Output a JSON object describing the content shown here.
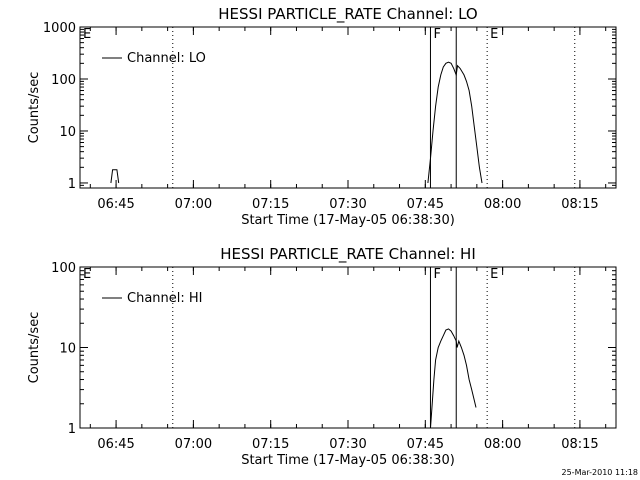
{
  "timestamp": "25-Mar-2010 11:18",
  "chart_data": [
    {
      "type": "line",
      "title": "HESSI PARTICLE_RATE Channel: LO",
      "xlabel": "Start Time (17-May-05 06:38:30)",
      "ylabel": "Counts/sec",
      "y_scale": "log",
      "ylim": [
        0.8,
        1000
      ],
      "y_ticks": [
        {
          "value": 1,
          "label": "1"
        },
        {
          "value": 10,
          "label": "10"
        },
        {
          "value": 100,
          "label": "100"
        },
        {
          "value": 1000,
          "label": "1000"
        }
      ],
      "xlim": [
        "06:38",
        "08:22"
      ],
      "x_ticks": [
        "06:45",
        "07:00",
        "07:15",
        "07:30",
        "07:45",
        "08:00",
        "08:15"
      ],
      "legend": {
        "placement": "top-left",
        "entries": [
          "Channel: LO"
        ]
      },
      "markers": [
        {
          "time": "06:38",
          "label": "E",
          "style": "dotted"
        },
        {
          "time": "06:56",
          "label": "",
          "style": "dotted"
        },
        {
          "time": "07:46",
          "label": "F",
          "style": "solid"
        },
        {
          "time": "07:51",
          "label": "",
          "style": "solid"
        },
        {
          "time": "07:57",
          "label": "E",
          "style": "dotted"
        },
        {
          "time": "08:14",
          "label": "",
          "style": "dotted"
        }
      ],
      "series": [
        {
          "name": "Channel: LO",
          "points": [
            [
              "06:44:00",
              1
            ],
            [
              "06:44:20",
              1.8
            ],
            [
              "06:45:10",
              1.8
            ],
            [
              "06:45:30",
              1
            ]
          ]
        },
        {
          "name": "Channel: LO",
          "points": [
            [
              "07:45:30",
              1
            ],
            [
              "07:46:00",
              3
            ],
            [
              "07:46:30",
              10
            ],
            [
              "07:47:00",
              30
            ],
            [
              "07:47:30",
              70
            ],
            [
              "07:48:00",
              120
            ],
            [
              "07:48:30",
              170
            ],
            [
              "07:49:00",
              200
            ],
            [
              "07:49:30",
              210
            ],
            [
              "07:50:00",
              200
            ],
            [
              "07:50:30",
              160
            ],
            [
              "07:51:00",
              120
            ],
            [
              "07:51:15",
              180
            ],
            [
              "07:51:45",
              160
            ],
            [
              "07:52:30",
              120
            ],
            [
              "07:53:00",
              90
            ],
            [
              "07:53:30",
              60
            ],
            [
              "07:54:00",
              30
            ],
            [
              "07:54:30",
              12
            ],
            [
              "07:55:00",
              5
            ],
            [
              "07:55:30",
              2
            ],
            [
              "07:56:00",
              1
            ]
          ]
        }
      ]
    },
    {
      "type": "line",
      "title": "HESSI PARTICLE_RATE Channel: HI",
      "xlabel": "Start Time (17-May-05 06:38:30)",
      "ylabel": "Counts/sec",
      "y_scale": "log",
      "ylim": [
        1,
        100
      ],
      "y_ticks": [
        {
          "value": 1,
          "label": "1"
        },
        {
          "value": 10,
          "label": "10"
        },
        {
          "value": 100,
          "label": "100"
        }
      ],
      "xlim": [
        "06:38",
        "08:22"
      ],
      "x_ticks": [
        "06:45",
        "07:00",
        "07:15",
        "07:30",
        "07:45",
        "08:00",
        "08:15"
      ],
      "legend": {
        "placement": "top-left",
        "entries": [
          "Channel: HI"
        ]
      },
      "markers": [
        {
          "time": "06:38",
          "label": "E",
          "style": "dotted"
        },
        {
          "time": "06:56",
          "label": "",
          "style": "dotted"
        },
        {
          "time": "07:46",
          "label": "F",
          "style": "solid"
        },
        {
          "time": "07:51",
          "label": "",
          "style": "solid"
        },
        {
          "time": "07:57",
          "label": "E",
          "style": "dotted"
        },
        {
          "time": "08:14",
          "label": "",
          "style": "dotted"
        }
      ],
      "series": [
        {
          "name": "Channel: HI",
          "points": [
            [
              "07:46:00",
              1
            ],
            [
              "07:46:20",
              2
            ],
            [
              "07:46:40",
              4
            ],
            [
              "07:47:00",
              7
            ],
            [
              "07:47:30",
              10
            ],
            [
              "07:48:00",
              12
            ],
            [
              "07:48:30",
              14
            ],
            [
              "07:49:00",
              16.5
            ],
            [
              "07:49:30",
              17
            ],
            [
              "07:50:00",
              16
            ],
            [
              "07:50:30",
              14
            ],
            [
              "07:51:00",
              12
            ],
            [
              "07:51:10",
              10
            ],
            [
              "07:51:30",
              12
            ],
            [
              "07:52:00",
              10
            ],
            [
              "07:52:30",
              8
            ],
            [
              "07:53:00",
              6
            ],
            [
              "07:53:30",
              4
            ],
            [
              "07:54:00",
              3
            ],
            [
              "07:54:30",
              2.2
            ],
            [
              "07:54:50",
              1.8
            ]
          ]
        }
      ]
    }
  ]
}
